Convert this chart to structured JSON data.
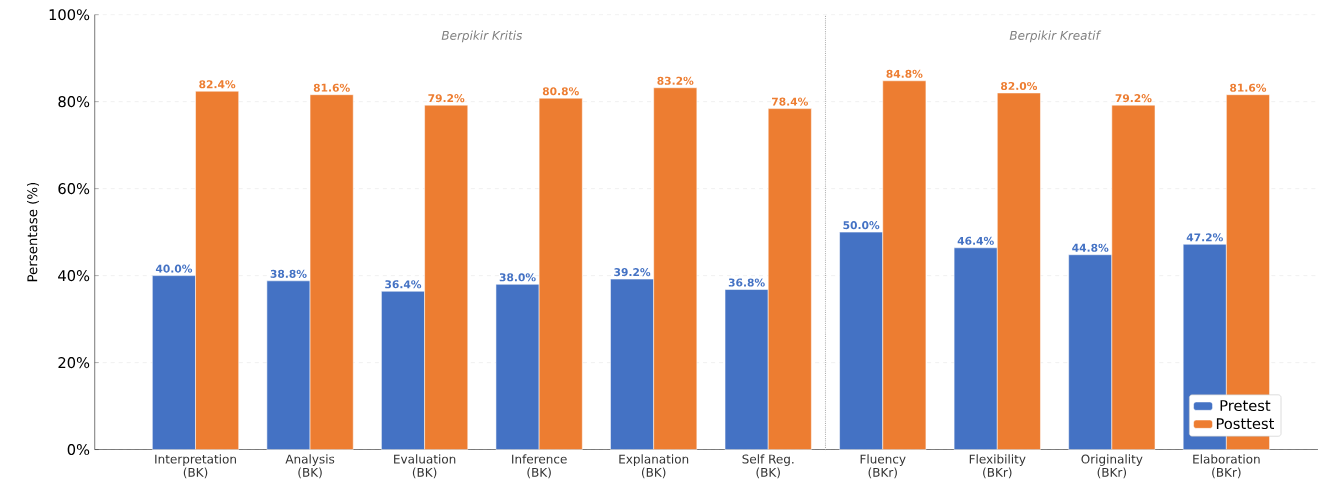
{
  "chart_data": {
    "type": "bar",
    "categories": [
      "Interpretation\n(BK)",
      "Analysis\n(BK)",
      "Evaluation\n(BK)",
      "Inference\n(BK)",
      "Explanation\n(BK)",
      "Self Reg.\n(BK)",
      "Fluency\n(BKr)",
      "Flexibility\n(BKr)",
      "Originality\n(BKr)",
      "Elaboration\n(BKr)"
    ],
    "series": [
      {
        "name": "Pretest",
        "color": "#4472c4",
        "values": [
          40.0,
          38.8,
          36.4,
          38.0,
          39.2,
          36.8,
          50.0,
          46.4,
          44.8,
          47.2
        ],
        "value_labels": [
          "40.0%",
          "38.8%",
          "36.4%",
          "38.0%",
          "39.2%",
          "36.8%",
          "50.0%",
          "46.4%",
          "44.8%",
          "47.2%"
        ]
      },
      {
        "name": "Posttest",
        "color": "#ed7d31",
        "values": [
          82.4,
          81.6,
          79.2,
          80.8,
          83.2,
          78.4,
          84.8,
          82.0,
          79.2,
          81.6
        ],
        "value_labels": [
          "82.4%",
          "81.6%",
          "79.2%",
          "80.8%",
          "83.2%",
          "78.4%",
          "84.8%",
          "82.0%",
          "79.2%",
          "81.6%"
        ]
      }
    ],
    "ylabel": "Persentase (%)",
    "ylim": [
      0,
      100
    ],
    "yticks": [
      {
        "value": 0,
        "label": "0%"
      },
      {
        "value": 20,
        "label": "20%"
      },
      {
        "value": 40,
        "label": "40%"
      },
      {
        "value": 60,
        "label": "60%"
      },
      {
        "value": 80,
        "label": "80%"
      },
      {
        "value": 100,
        "label": "100%"
      }
    ],
    "annotations": [
      "Berpikir Kritis",
      "Berpikir Kreatif"
    ],
    "grid": "y",
    "legend": "bottom right"
  }
}
